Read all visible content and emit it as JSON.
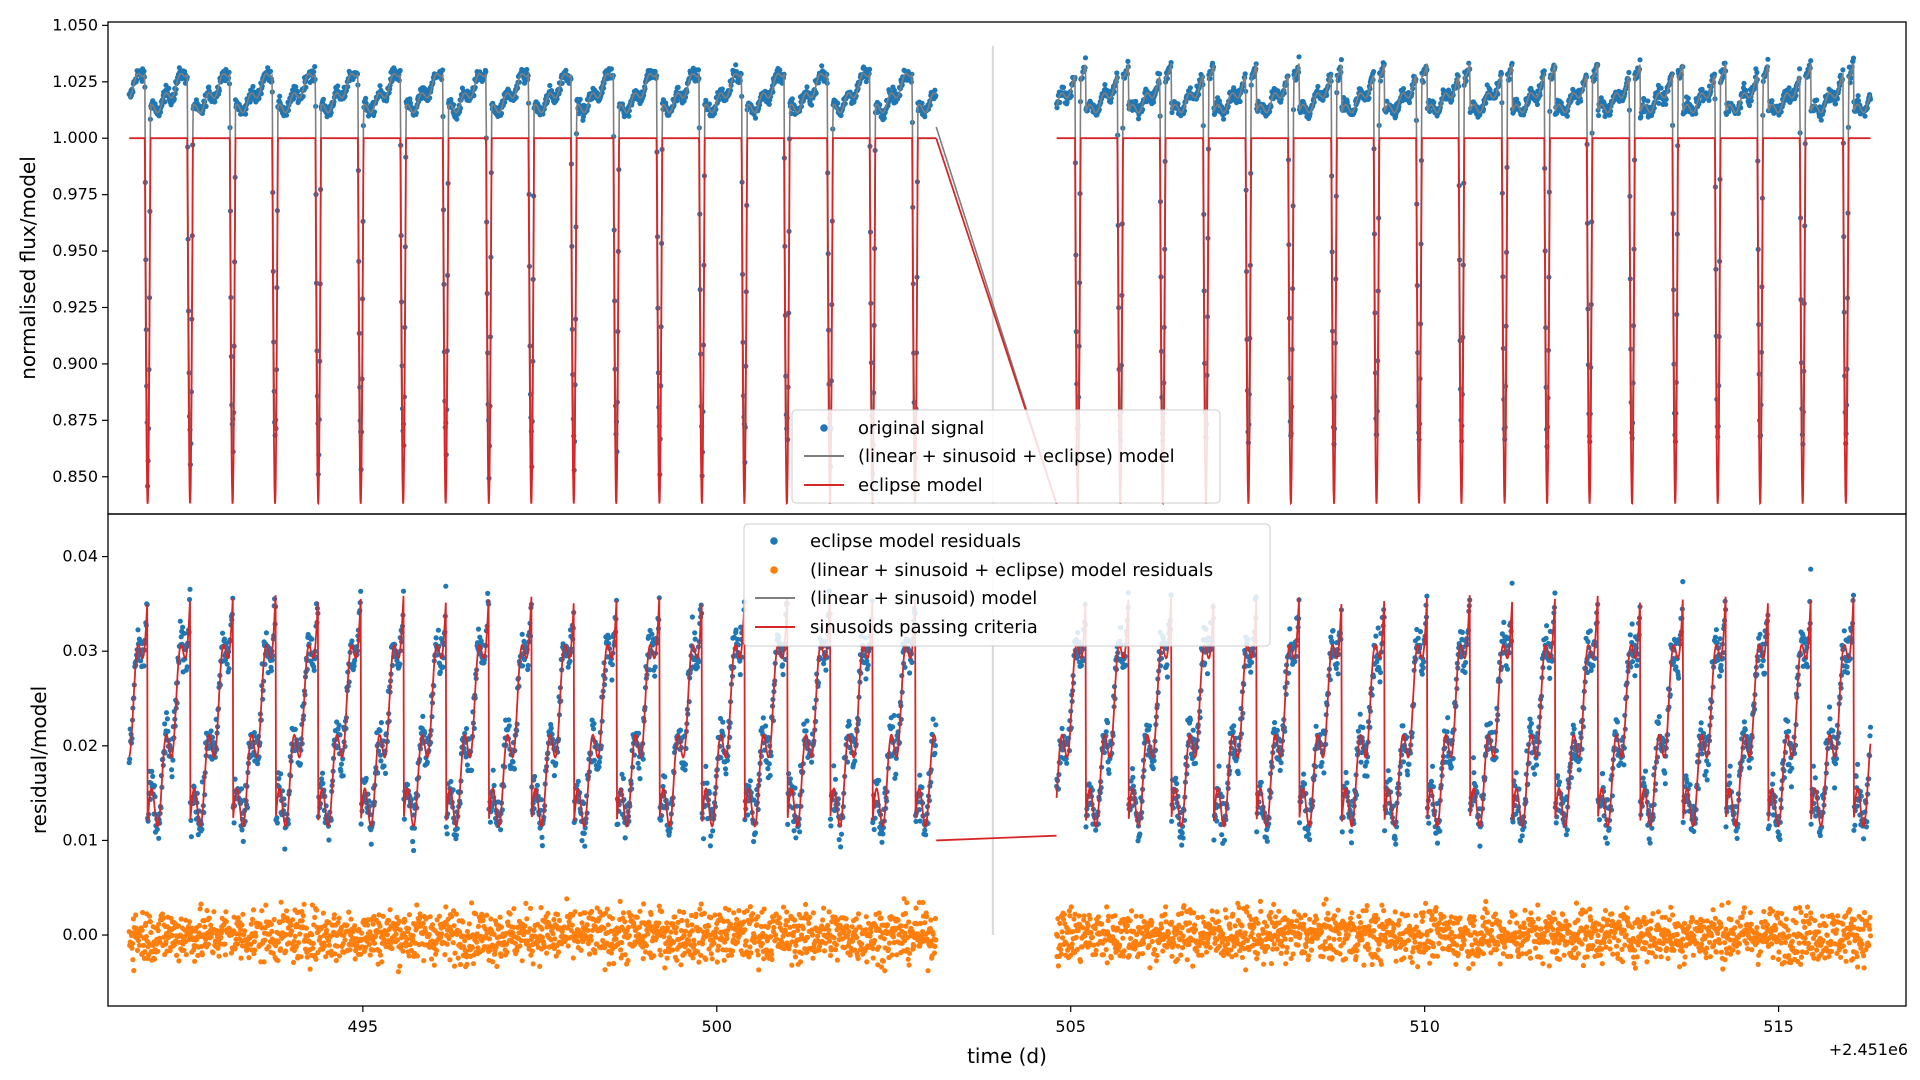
{
  "chart_data": [
    {
      "type": "scatter",
      "panel": "top",
      "ylabel": "normalised flux/model",
      "xlim": [
        491.4,
        516.8
      ],
      "ylim": [
        0.8335,
        1.0515
      ],
      "yticks": [
        0.85,
        0.875,
        0.9,
        0.925,
        0.95,
        0.975,
        1.0,
        1.025,
        1.05
      ],
      "ytick_labels": [
        "0.850",
        "0.875",
        "0.900",
        "0.925",
        "0.950",
        "0.975",
        "1.000",
        "1.025",
        "1.050"
      ],
      "legend_location": "lower center",
      "gap": [
        503.1,
        504.8
      ],
      "vertical_marker_x": 503.9,
      "period": 0.6025,
      "segments": [
        {
          "start": 491.7,
          "end": 503.1,
          "eclipses": [
            491.96,
            492.56,
            493.16,
            493.76,
            494.37,
            494.97,
            495.57,
            496.17,
            496.78,
            497.38,
            497.98,
            498.58,
            499.19,
            499.79,
            500.39,
            500.99,
            501.6,
            502.2,
            502.8
          ]
        },
        {
          "start": 504.8,
          "end": 516.3,
          "eclipses": [
            505.1,
            505.7,
            506.3,
            506.91,
            507.51,
            508.11,
            508.72,
            509.32,
            509.92,
            510.52,
            511.13,
            511.73,
            512.33,
            512.93,
            513.54,
            514.14,
            514.74,
            515.34,
            515.95
          ]
        }
      ],
      "eclipse_depth_min": 0.838,
      "baseline": 1.0,
      "series": [
        {
          "name": "original signal",
          "kind": "scatter",
          "color": "#1f77b4",
          "range": [
            0.838,
            1.041
          ]
        },
        {
          "name": "(linear + sinusoid + eclipse) model",
          "kind": "line",
          "color": "#7f7f7f"
        },
        {
          "name": "eclipse model",
          "kind": "line",
          "color": "#d62728",
          "value_out_of_eclipse": 1.0
        }
      ]
    },
    {
      "type": "scatter",
      "panel": "bottom",
      "xlabel": "time (d)",
      "ylabel": "residual/model",
      "x_offset_label": "+2.451e6",
      "xlim": [
        491.4,
        516.8
      ],
      "ylim": [
        -0.0075,
        0.0445
      ],
      "xticks": [
        495,
        500,
        505,
        510,
        515
      ],
      "xtick_labels": [
        "495",
        "500",
        "505",
        "510",
        "515"
      ],
      "yticks": [
        0.0,
        0.01,
        0.02,
        0.03,
        0.04
      ],
      "ytick_labels": [
        "0.00",
        "0.01",
        "0.02",
        "0.03",
        "0.04"
      ],
      "legend_location": "upper center",
      "gap": [
        503.1,
        504.8
      ],
      "vertical_marker_x": 503.9,
      "residual_level_in_gap": [
        0.01,
        0.0105
      ],
      "series": [
        {
          "name": "eclipse model residuals",
          "kind": "scatter",
          "color": "#1f77b4",
          "range": [
            0.009,
            0.041
          ]
        },
        {
          "name": "(linear + sinusoid + eclipse) model residuals",
          "kind": "scatter",
          "color": "#ff7f0e",
          "range": [
            -0.005,
            0.005
          ]
        },
        {
          "name": "(linear + sinusoid) model",
          "kind": "line",
          "color": "#7f7f7f"
        },
        {
          "name": "sinusoids passing criteria",
          "kind": "line",
          "color": "#d62728",
          "range": [
            0.012,
            0.036
          ]
        }
      ]
    }
  ]
}
